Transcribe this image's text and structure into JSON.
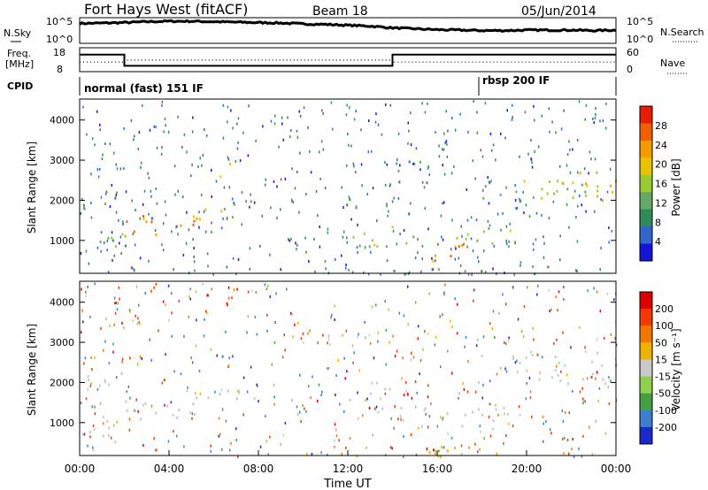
{
  "header": {
    "station": "Fort Hays West (fitACF)",
    "beam": "Beam 18",
    "date": "05/Jun/2014"
  },
  "left_labels": {
    "nsky": "N.Sky",
    "freq_line1": "Freq.",
    "freq_line2": "[MHz]",
    "cpid": "CPID"
  },
  "right_labels": {
    "nsearch": "N.Search",
    "nave": "Nave"
  },
  "cpid_segments": [
    "normal (fast) 151 IF",
    "rbsp 200 IF"
  ],
  "time_label": "Time UT",
  "colors": {
    "frame": "#000000",
    "background": "#ffffff"
  },
  "chart_data": [
    {
      "type": "line",
      "name": "noise",
      "left_axis": {
        "label": "N.Sky",
        "ticks": [
          "10^5",
          "10^0"
        ]
      },
      "right_axis": {
        "label": "N.Search",
        "ticks": [
          "10^5",
          "10^0"
        ]
      },
      "x": [
        0,
        1,
        2,
        3,
        4,
        5,
        6,
        7,
        8,
        9,
        10,
        11,
        12,
        13,
        14,
        15,
        16,
        17,
        18,
        19,
        20,
        21,
        22,
        23,
        24
      ],
      "nsky_log": [
        4.1,
        4.2,
        4.3,
        4.5,
        4.6,
        4.6,
        4.5,
        4.4,
        4.3,
        4.2,
        4.0,
        3.9,
        3.7,
        3.5,
        3.1,
        2.9,
        2.7,
        2.6,
        2.5,
        2.5,
        2.6,
        2.6,
        2.6,
        2.5,
        2.6
      ]
    },
    {
      "type": "line",
      "name": "frequency_nave",
      "left_axis": {
        "label": "Freq. [MHz]",
        "ticks": [
          "18",
          "8"
        ],
        "ylim": [
          8,
          18
        ]
      },
      "right_axis": {
        "label": "Nave",
        "ticks": [
          "60",
          "0"
        ],
        "ylim": [
          0,
          60
        ]
      },
      "freq_steps": [
        {
          "from": 0,
          "to": 2,
          "value": 15.5
        },
        {
          "from": 2,
          "to": 14,
          "value": 10.0
        },
        {
          "from": 14,
          "to": 24,
          "value": 15.5
        }
      ],
      "nave_steps": [
        {
          "from": 0,
          "to": 2,
          "value": 23
        },
        {
          "from": 2,
          "to": 14,
          "value": 29
        },
        {
          "from": 14,
          "to": 24,
          "value": 23
        }
      ]
    },
    {
      "type": "heatmap",
      "name": "power",
      "ylabel": "Slant Range [km]",
      "yticks": [
        1000,
        2000,
        3000,
        4000
      ],
      "ylim": [
        180,
        4500
      ],
      "xlim": [
        0,
        24
      ],
      "colorbar": {
        "label": "Power [dB]",
        "ticks": [
          "28",
          "24",
          "20",
          "16",
          "12",
          "8",
          "4"
        ],
        "range": [
          0,
          30
        ]
      },
      "regions": [
        {
          "t0": 0.0,
          "t1": 2.0,
          "r0": 1700,
          "r1": 2200,
          "value": 9
        },
        {
          "t0": 0.0,
          "t1": 2.2,
          "r0": 800,
          "r1": 1200,
          "value": 11
        },
        {
          "t0": 1.0,
          "t1": 2.2,
          "r0": 500,
          "r1": 900,
          "value": 10
        },
        {
          "t0": 2.0,
          "t1": 5.5,
          "r0": 1050,
          "r1": 1700,
          "value": 22
        },
        {
          "t0": 4.5,
          "t1": 7.8,
          "r0": 1550,
          "r1": 1900,
          "value": 15
        },
        {
          "t0": 6.2,
          "t1": 6.9,
          "r0": 2600,
          "r1": 3050,
          "value": 16
        },
        {
          "t0": 11.8,
          "t1": 14.2,
          "r0": 1500,
          "r1": 2100,
          "value": 9
        },
        {
          "t0": 12.0,
          "t1": 19.5,
          "r0": 850,
          "r1": 1400,
          "value": 14
        },
        {
          "t0": 14.5,
          "t1": 17.5,
          "r0": 500,
          "r1": 1000,
          "value": 22
        },
        {
          "t0": 14.2,
          "t1": 15.8,
          "r0": 2300,
          "r1": 3100,
          "value": 8
        },
        {
          "t0": 17.8,
          "t1": 24.0,
          "r0": 2000,
          "r1": 2800,
          "value": 14
        },
        {
          "t0": 22.0,
          "t1": 24.0,
          "r0": 2000,
          "r1": 2600,
          "value": 19
        },
        {
          "t0": 11.5,
          "t1": 22.0,
          "r0": 180,
          "r1": 380,
          "value": 10
        }
      ]
    },
    {
      "type": "heatmap",
      "name": "velocity",
      "ylabel": "Slant Range [km]",
      "yticks": [
        1000,
        2000,
        3000,
        4000
      ],
      "ylim": [
        180,
        4500
      ],
      "xlim": [
        0,
        24
      ],
      "xticks": [
        "00:00",
        "04:00",
        "08:00",
        "12:00",
        "16:00",
        "20:00",
        "00:00"
      ],
      "xlabel": "Time UT",
      "colorbar": {
        "label": "Velocity [m s⁻¹]",
        "ticks": [
          "200",
          "100",
          "50",
          "15",
          "-15",
          "-50",
          "-100",
          "-200"
        ],
        "range": [
          -240,
          240
        ]
      },
      "regions": [
        {
          "t0": 0.0,
          "t1": 2.0,
          "r0": 1700,
          "r1": 2200,
          "value": 0
        },
        {
          "t0": 0.0,
          "t1": 2.2,
          "r0": 500,
          "r1": 1200,
          "value": 0
        },
        {
          "t0": 2.0,
          "t1": 5.5,
          "r0": 1050,
          "r1": 1700,
          "value": 0
        },
        {
          "t0": 4.5,
          "t1": 7.8,
          "r0": 1550,
          "r1": 1900,
          "value": 0
        },
        {
          "t0": 6.2,
          "t1": 6.9,
          "r0": 2600,
          "r1": 3050,
          "value": 180
        },
        {
          "t0": 3.4,
          "t1": 3.9,
          "r0": 2000,
          "r1": 2250,
          "value": -180
        },
        {
          "t0": 6.5,
          "t1": 7.2,
          "r0": 1700,
          "r1": 1900,
          "value": 40
        },
        {
          "t0": 12.0,
          "t1": 19.5,
          "r0": 850,
          "r1": 1400,
          "value": 0
        },
        {
          "t0": 11.8,
          "t1": 14.2,
          "r0": 1500,
          "r1": 2100,
          "value": 0
        },
        {
          "t0": 17.8,
          "t1": 24.0,
          "r0": 2000,
          "r1": 2800,
          "value": 0
        },
        {
          "t0": 12.0,
          "t1": 22.0,
          "r0": 180,
          "r1": 420,
          "value": -40
        }
      ]
    }
  ]
}
